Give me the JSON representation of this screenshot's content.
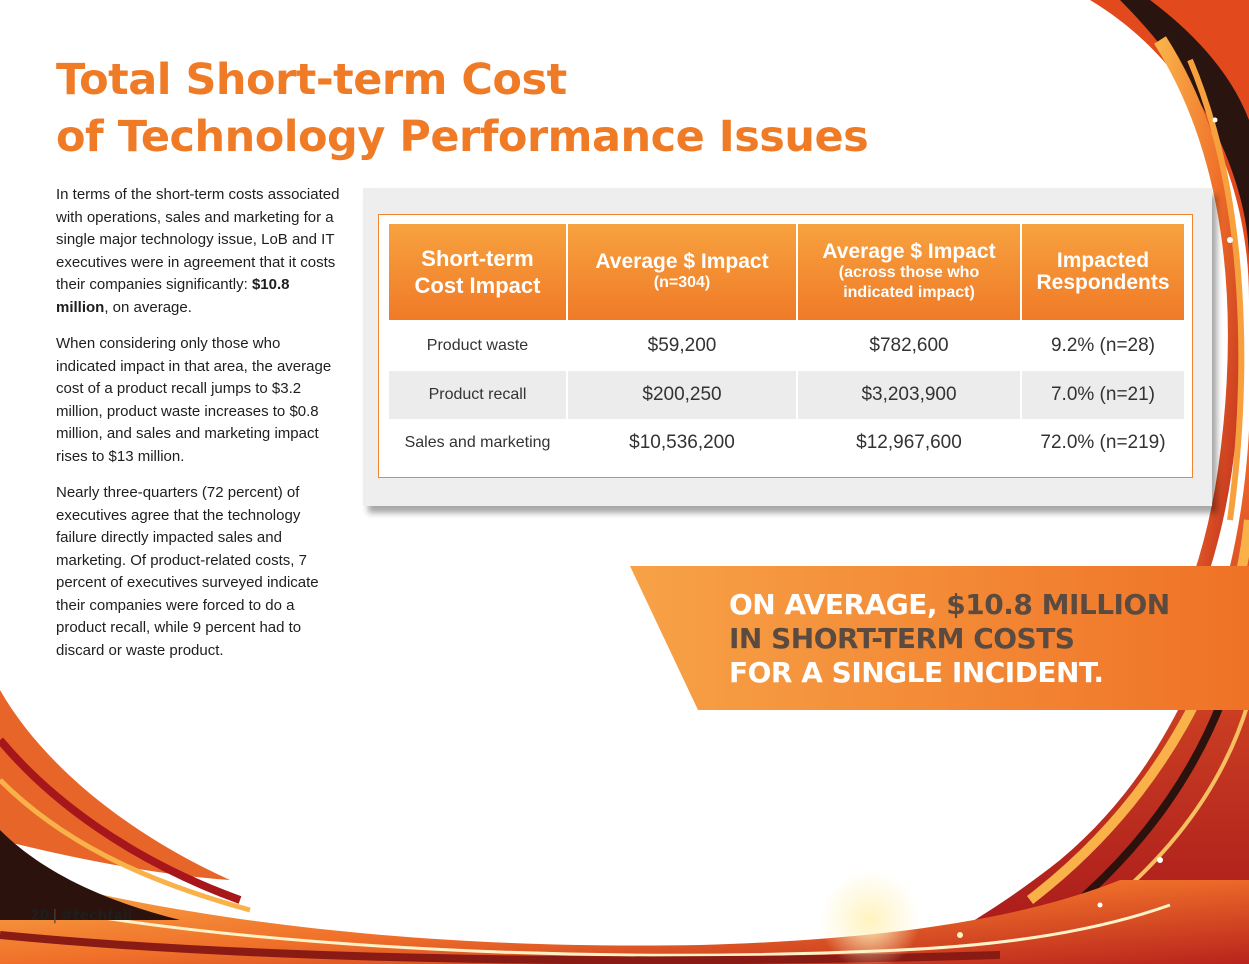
{
  "title": {
    "line1": "Total Short-term Cost",
    "line2": "of Technology Performance Issues"
  },
  "body": {
    "p1_before": "In terms of the short-term costs associated with operations, sales and marketing for a single major technology issue, LoB and IT executives were in agreement that it costs their companies significantly: ",
    "p1_bold": "$10.8 million",
    "p1_after": ", on average.",
    "p2": "When considering only those who indicated impact in that area, the average cost of a product recall jumps to $3.2 million, product waste increases to $0.8 million, and sales and marketing impact rises to $13 million.",
    "p3": "Nearly three-quarters (72 percent) of executives agree that the technology failure directly impacted sales and marketing. Of product-related costs, 7 percent of executives surveyed indicate their companies were forced to do a product recall, while 9 percent had to discard or waste product."
  },
  "table": {
    "headers": [
      {
        "line1": "Short-term",
        "line2": "Cost Impact",
        "sub1": "",
        "sub2": ""
      },
      {
        "line1": "Average $ Impact",
        "line2": "",
        "sub1": "(n=304)",
        "sub2": ""
      },
      {
        "line1": "Average $ Impact",
        "line2": "",
        "sub1": "(across those who",
        "sub2": "indicated impact)"
      },
      {
        "line1": "Impacted",
        "line2": "Respondents",
        "sub1": "",
        "sub2": ""
      }
    ],
    "rows": [
      [
        "Product waste",
        "$59,200",
        "$782,600",
        "9.2% (n=28)"
      ],
      [
        "Product recall",
        "$200,250",
        "$3,203,900",
        "7.0% (n=21)"
      ],
      [
        "Sales and marketing",
        "$10,536,200",
        "$12,967,600",
        "72.0% (n=219)"
      ]
    ]
  },
  "callout": {
    "line1_a": "ON AVERAGE, ",
    "line1_b": "$10.8 MILLION",
    "line2": "IN SHORT-TERM COSTS",
    "line3": "FOR A SINGLE INCIDENT."
  },
  "footer": {
    "page": "20",
    "separator": "|",
    "hashtag": "#techfail"
  },
  "colors": {
    "accent_orange": "#f07b27",
    "callout_dark": "#5a4a40"
  }
}
